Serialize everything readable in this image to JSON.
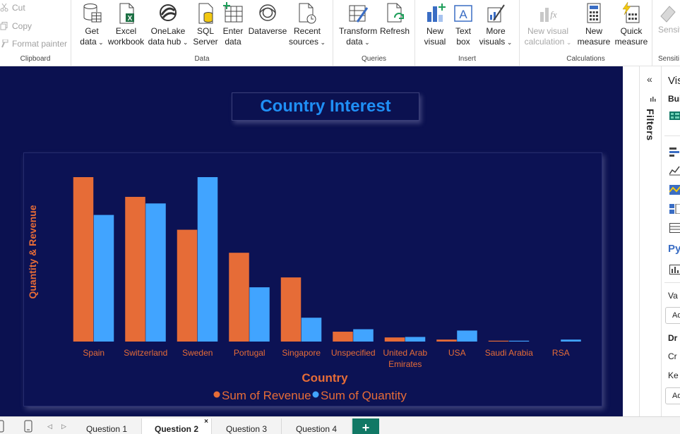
{
  "ribbon": {
    "clipboard": {
      "label": "Clipboard",
      "cut": "Cut",
      "copy": "Copy",
      "format_painter": "Format painter"
    },
    "data": {
      "label": "Data",
      "get_data": [
        "Get",
        "data"
      ],
      "excel": [
        "Excel",
        "workbook"
      ],
      "onelake": [
        "OneLake",
        "data hub"
      ],
      "sql": [
        "SQL",
        "Server"
      ],
      "enter": [
        "Enter",
        "data"
      ],
      "dataverse": [
        "Dataverse",
        ""
      ],
      "recent": [
        "Recent",
        "sources"
      ]
    },
    "queries": {
      "label": "Queries",
      "transform": [
        "Transform",
        "data"
      ],
      "refresh": [
        "Refresh",
        ""
      ]
    },
    "insert": {
      "label": "Insert",
      "new_visual": [
        "New",
        "visual"
      ],
      "text_box": [
        "Text",
        "box"
      ],
      "more_visuals": [
        "More",
        "visuals"
      ]
    },
    "calculations": {
      "label": "Calculations",
      "new_visual_calc": [
        "New visual",
        "calculation"
      ],
      "new_measure": [
        "New",
        "measure"
      ],
      "quick_measure": [
        "Quick",
        "measure"
      ]
    },
    "sensitivity": {
      "label": "Sensiti",
      "button": "Sensiti"
    }
  },
  "report": {
    "title": "Country Interest"
  },
  "chart_data": {
    "type": "bar",
    "categories": [
      "Spain",
      "Switzerland",
      "Sweden",
      "Portugal",
      "Singapore",
      "Unspecified",
      "United Arab Emirates",
      "USA",
      "Saudi Arabia",
      "RSA"
    ],
    "series": [
      {
        "name": "Sum of Revenue",
        "values": [
          100,
          88,
          68,
          54,
          39,
          6,
          2.5,
          1.2,
          0.4,
          0
        ]
      },
      {
        "name": "Sum of Quantity",
        "values": [
          77,
          84,
          100,
          33,
          14.5,
          7.5,
          2.8,
          6.7,
          0.3,
          1.2
        ]
      }
    ],
    "title": "",
    "xlabel": "Country",
    "ylabel": "Quantity & Revenue",
    "ylim": [
      0,
      100
    ],
    "grid": false,
    "legend": "bottom-center",
    "colors": {
      "revenue": "#e66c37",
      "quantity": "#41a4ff",
      "label": "#e66c37"
    }
  },
  "filters_pane": {
    "label": "Filters",
    "collapse": "«"
  },
  "viz_pane": {
    "heading": "Vis",
    "build": "Bui",
    "py": "Py",
    "values": "Va",
    "add_data": "Ad",
    "drill": "Dr",
    "cross": "Cr",
    "keep": "Ke",
    "add_data_2": "Ad"
  },
  "tabs": [
    {
      "label": "Question 1",
      "active": false
    },
    {
      "label": "Question 2",
      "active": true
    },
    {
      "label": "Question 3",
      "active": false
    },
    {
      "label": "Question 4",
      "active": false
    }
  ],
  "tabs_bar": {
    "add": "+",
    "close": "×"
  }
}
